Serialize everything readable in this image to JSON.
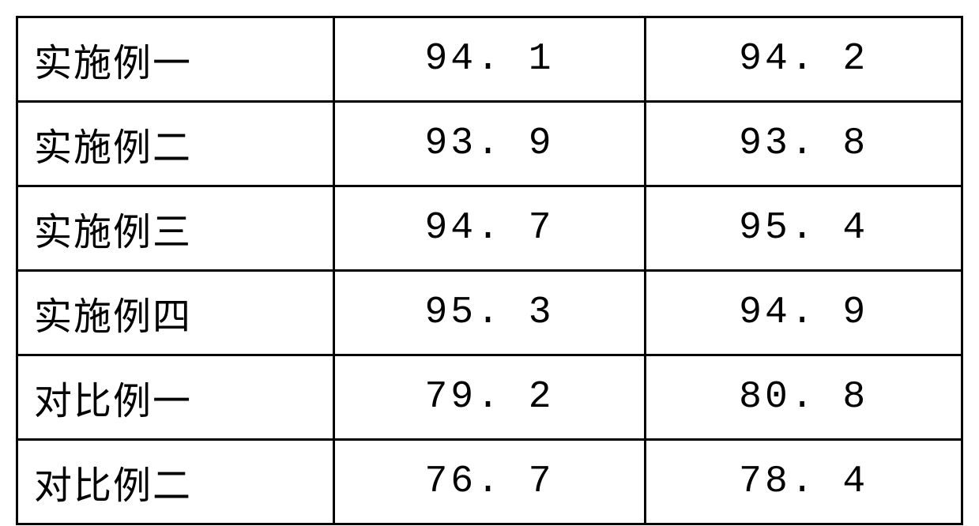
{
  "table": {
    "type": "table",
    "background_color": "#ffffff",
    "border_color": "#000000",
    "border_width": 3,
    "text_color": "#000000",
    "font_family": "SimSun",
    "font_size_pt": 36,
    "column_widths_pct": [
      33.5,
      33.0,
      33.5
    ],
    "column_alignment": [
      "left",
      "center",
      "center"
    ],
    "columns": [
      "label",
      "value1",
      "value2"
    ],
    "rows": [
      {
        "label": "实施例一",
        "value1": "94. 1",
        "value2": "94. 2"
      },
      {
        "label": "实施例二",
        "value1": "93. 9",
        "value2": "93. 8"
      },
      {
        "label": "实施例三",
        "value1": "94. 7",
        "value2": "95. 4"
      },
      {
        "label": "实施例四",
        "value1": "95. 3",
        "value2": "94. 9"
      },
      {
        "label": "对比例一",
        "value1": "79. 2",
        "value2": "80. 8"
      },
      {
        "label": "对比例二",
        "value1": "76. 7",
        "value2": "78. 4"
      }
    ]
  }
}
